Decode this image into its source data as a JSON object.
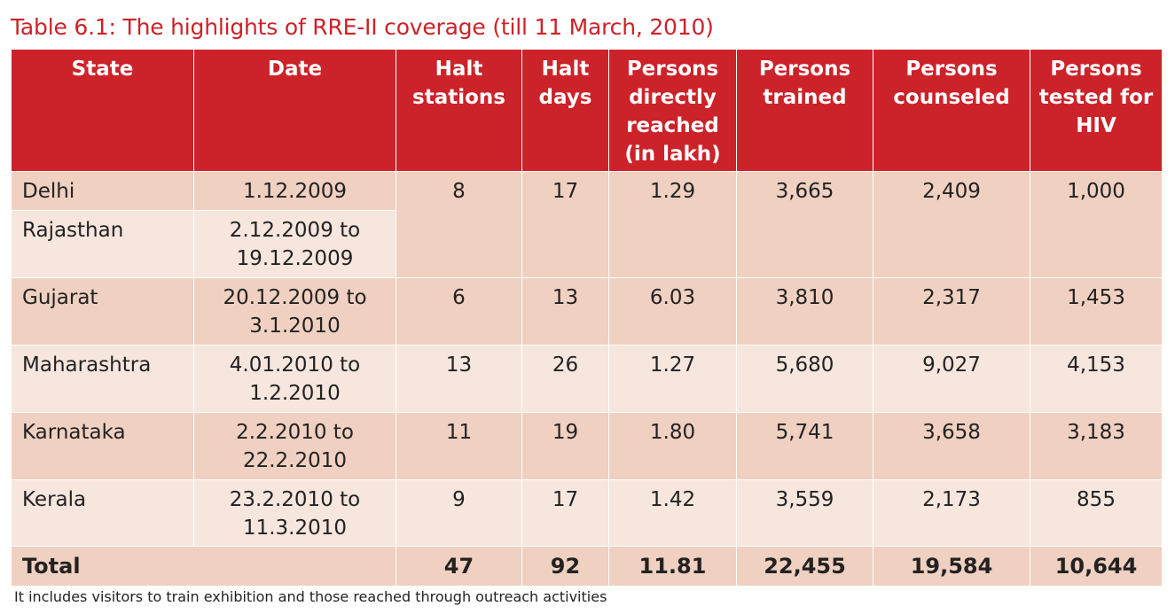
{
  "title": "Table 6.1: The highlights of RRE-II coverage (till 11 March, 2010)",
  "colors": {
    "header": "#cc2229",
    "row_dark": "#f0d0c0",
    "row_light": "#f6e6dd"
  },
  "headers": [
    "State",
    "Date",
    "Halt stations",
    "Halt days",
    "Persons directly reached (in lakh)",
    "Persons trained",
    "Persons counseled",
    "Persons tested for HIV"
  ],
  "rows": [
    {
      "state": "Delhi",
      "date": "1.12.2009",
      "halt_stations": "8",
      "halt_days": "17",
      "reached": "1.29",
      "trained": "3,665",
      "counseled": "2,409",
      "tested": "1,000"
    },
    {
      "state": "Rajasthan",
      "date": "2.12.2009 to 19.12.2009"
    },
    {
      "state": "Gujarat",
      "date": "20.12.2009 to 3.1.2010",
      "halt_stations": "6",
      "halt_days": "13",
      "reached": "6.03",
      "trained": "3,810",
      "counseled": "2,317",
      "tested": "1,453"
    },
    {
      "state": "Maharashtra",
      "date": "4.01.2010 to 1.2.2010",
      "halt_stations": "13",
      "halt_days": "26",
      "reached": "1.27",
      "trained": "5,680",
      "counseled": "9,027",
      "tested": "4,153"
    },
    {
      "state": "Karnataka",
      "date": "2.2.2010 to 22.2.2010",
      "halt_stations": "11",
      "halt_days": "19",
      "reached": "1.80",
      "trained": "5,741",
      "counseled": "3,658",
      "tested": "3,183"
    },
    {
      "state": "Kerala",
      "date": "23.2.2010 to 11.3.2010",
      "halt_stations": "9",
      "halt_days": "17",
      "reached": "1.42",
      "trained": "3,559",
      "counseled": "2,173",
      "tested": "855"
    }
  ],
  "total": {
    "label": "Total",
    "halt_stations": "47",
    "halt_days": "92",
    "reached": "11.81",
    "trained": "22,455",
    "counseled": "19,584",
    "tested": "10,644"
  },
  "footnote": "It includes visitors to train exhibition and those reached through outreach activities"
}
